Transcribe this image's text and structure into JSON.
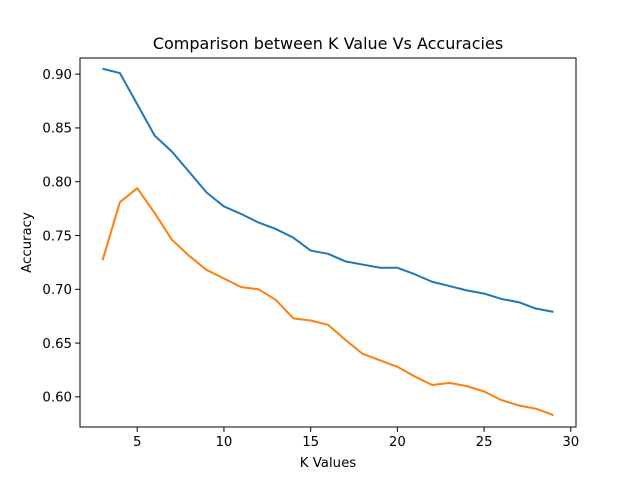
{
  "chart_data": {
    "type": "line",
    "title": "Comparison between K Value Vs Accuracies",
    "xlabel": "K Values",
    "ylabel": "Accuracy",
    "xlim": [
      1.7,
      30.3
    ],
    "ylim": [
      0.572,
      0.915
    ],
    "xticks": [
      5,
      10,
      15,
      20,
      25,
      30
    ],
    "yticks": [
      0.6,
      0.65,
      0.7,
      0.75,
      0.8,
      0.85,
      0.9
    ],
    "ytick_labels": [
      "0.60",
      "0.65",
      "0.70",
      "0.75",
      "0.80",
      "0.85",
      "0.90"
    ],
    "grid": false,
    "x": [
      3,
      4,
      5,
      6,
      7,
      8,
      9,
      10,
      11,
      12,
      13,
      14,
      15,
      16,
      17,
      18,
      19,
      20,
      21,
      22,
      23,
      24,
      25,
      26,
      27,
      28,
      29
    ],
    "series": [
      {
        "color": "#1f77b4",
        "values": [
          0.905,
          0.901,
          0.872,
          0.843,
          0.828,
          0.809,
          0.79,
          0.777,
          0.77,
          0.762,
          0.756,
          0.748,
          0.736,
          0.733,
          0.726,
          0.723,
          0.72,
          0.72,
          0.714,
          0.707,
          0.703,
          0.699,
          0.696,
          0.691,
          0.688,
          0.682,
          0.679
        ]
      },
      {
        "color": "#ff7f0e",
        "values": [
          0.727,
          0.781,
          0.794,
          0.771,
          0.746,
          0.731,
          0.718,
          0.71,
          0.702,
          0.7,
          0.69,
          0.673,
          0.671,
          0.667,
          0.653,
          0.64,
          0.634,
          0.628,
          0.619,
          0.611,
          0.613,
          0.61,
          0.605,
          0.597,
          0.592,
          0.589,
          0.583
        ]
      }
    ]
  }
}
